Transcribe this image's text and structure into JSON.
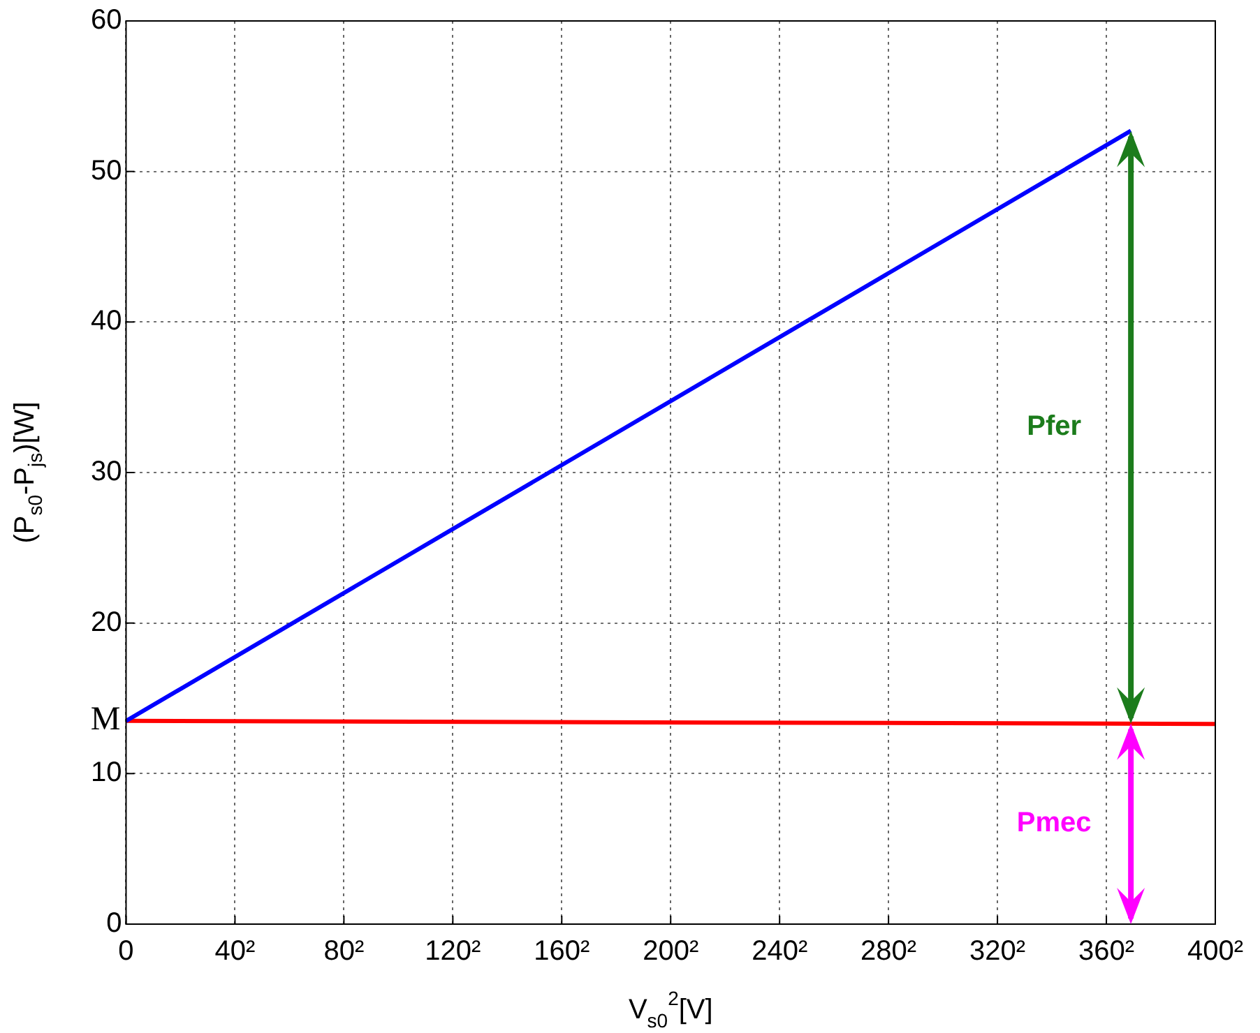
{
  "chart_data": {
    "type": "line",
    "xlabel": "V$_{s0}$$^{2}$[V]",
    "ylabel": "(P$_{s0}$-P$_{js}$)[W]",
    "xlim": [
      0,
      400
    ],
    "xticks": [
      0,
      {
        "value": 40,
        "label": "40²"
      },
      {
        "value": 80,
        "label": "80²"
      },
      {
        "value": 120,
        "label": "120²"
      },
      {
        "value": 160,
        "label": "160²"
      },
      {
        "value": 200,
        "label": "200²"
      },
      {
        "value": 240,
        "label": "240²"
      },
      {
        "value": 280,
        "label": "280²"
      },
      {
        "value": 320,
        "label": "320²"
      },
      {
        "value": 360,
        "label": "360²"
      },
      {
        "value": 400,
        "label": "400²"
      }
    ],
    "ylim": [
      0,
      60
    ],
    "yticks": [
      0,
      10,
      20,
      30,
      40,
      50,
      60
    ],
    "series": [
      {
        "color": "#0000ff",
        "x": [
          0,
          369
        ],
        "values": [
          13.5,
          52.7
        ]
      },
      {
        "color": "#ff0000",
        "x": [
          0,
          400
        ],
        "values": [
          13.5,
          13.3
        ]
      }
    ],
    "annotations": [
      {
        "text": "M",
        "x": 0,
        "y": 13.5
      },
      "Pfer",
      "Pmec"
    ],
    "grid": true,
    "marker": "none",
    "line_style": "solid"
  }
}
